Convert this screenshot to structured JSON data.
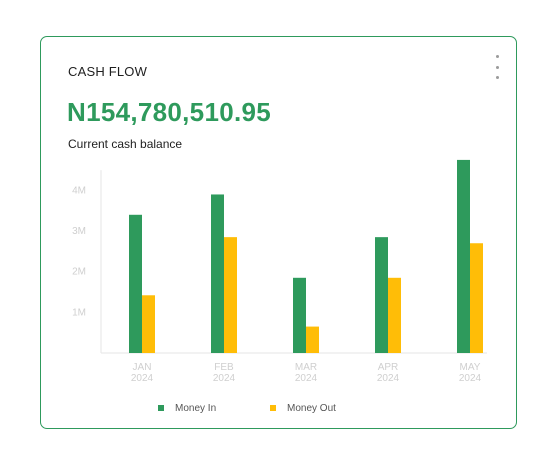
{
  "card": {
    "title": "CASH FLOW",
    "balance": "N154,780,510.95",
    "subtitle": "Current cash balance",
    "menu_icon": "more-vertical-icon"
  },
  "colors": {
    "money_in": "#2e9a5c",
    "money_out": "#ffbd07",
    "accent": "#2e9a5c",
    "axis": "#e6e6e6",
    "tick_text": "#cfcfcf"
  },
  "chart_data": {
    "type": "bar",
    "categories": [
      [
        "JAN",
        "2024"
      ],
      [
        "FEB",
        "2024"
      ],
      [
        "MAR",
        "2024"
      ],
      [
        "APR",
        "2024"
      ],
      [
        "MAY",
        "2024"
      ]
    ],
    "series": [
      {
        "name": "Money In",
        "values": [
          3400000,
          3900000,
          1850000,
          2850000,
          4750000
        ]
      },
      {
        "name": "Money Out",
        "values": [
          1420000,
          2850000,
          650000,
          1850000,
          2700000
        ]
      }
    ],
    "y_ticks": [
      {
        "value": 1000000,
        "label": "1M"
      },
      {
        "value": 2000000,
        "label": "2M"
      },
      {
        "value": 3000000,
        "label": "3M"
      },
      {
        "value": 4000000,
        "label": "4M"
      }
    ],
    "ylim": [
      0,
      4500000
    ],
    "grid": false,
    "legend_position": "bottom"
  }
}
